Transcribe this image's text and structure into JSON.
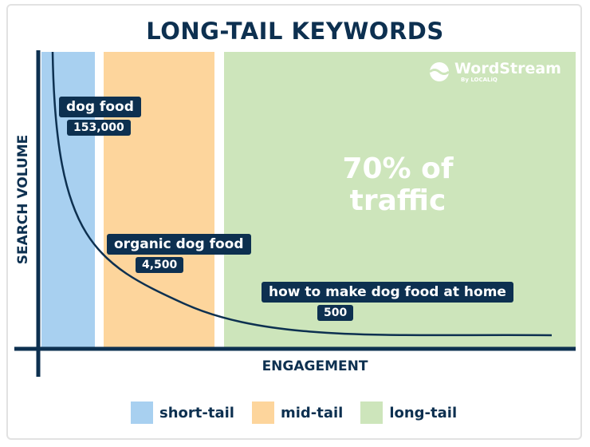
{
  "title": "LONG-TAIL KEYWORDS",
  "axes": {
    "y_label": "SEARCH VOLUME",
    "x_label": "ENGAGEMENT"
  },
  "brand": {
    "name": "WordStream",
    "byline": "By LOCALiQ"
  },
  "callout": {
    "line1": "70% of",
    "line2": "traffic"
  },
  "keywords": [
    {
      "term": "dog food",
      "volume": "153,000",
      "category": "short-tail"
    },
    {
      "term": "organic dog food",
      "volume": "4,500",
      "category": "mid-tail"
    },
    {
      "term": "how to make dog food at home",
      "volume": "500",
      "category": "long-tail"
    }
  ],
  "legend": [
    {
      "label": "short-tail",
      "color": "#a8d0f0"
    },
    {
      "label": "mid-tail",
      "color": "#fdd59c"
    },
    {
      "label": "long-tail",
      "color": "#cde5bb"
    }
  ],
  "colors": {
    "navy": "#0d3050"
  }
}
